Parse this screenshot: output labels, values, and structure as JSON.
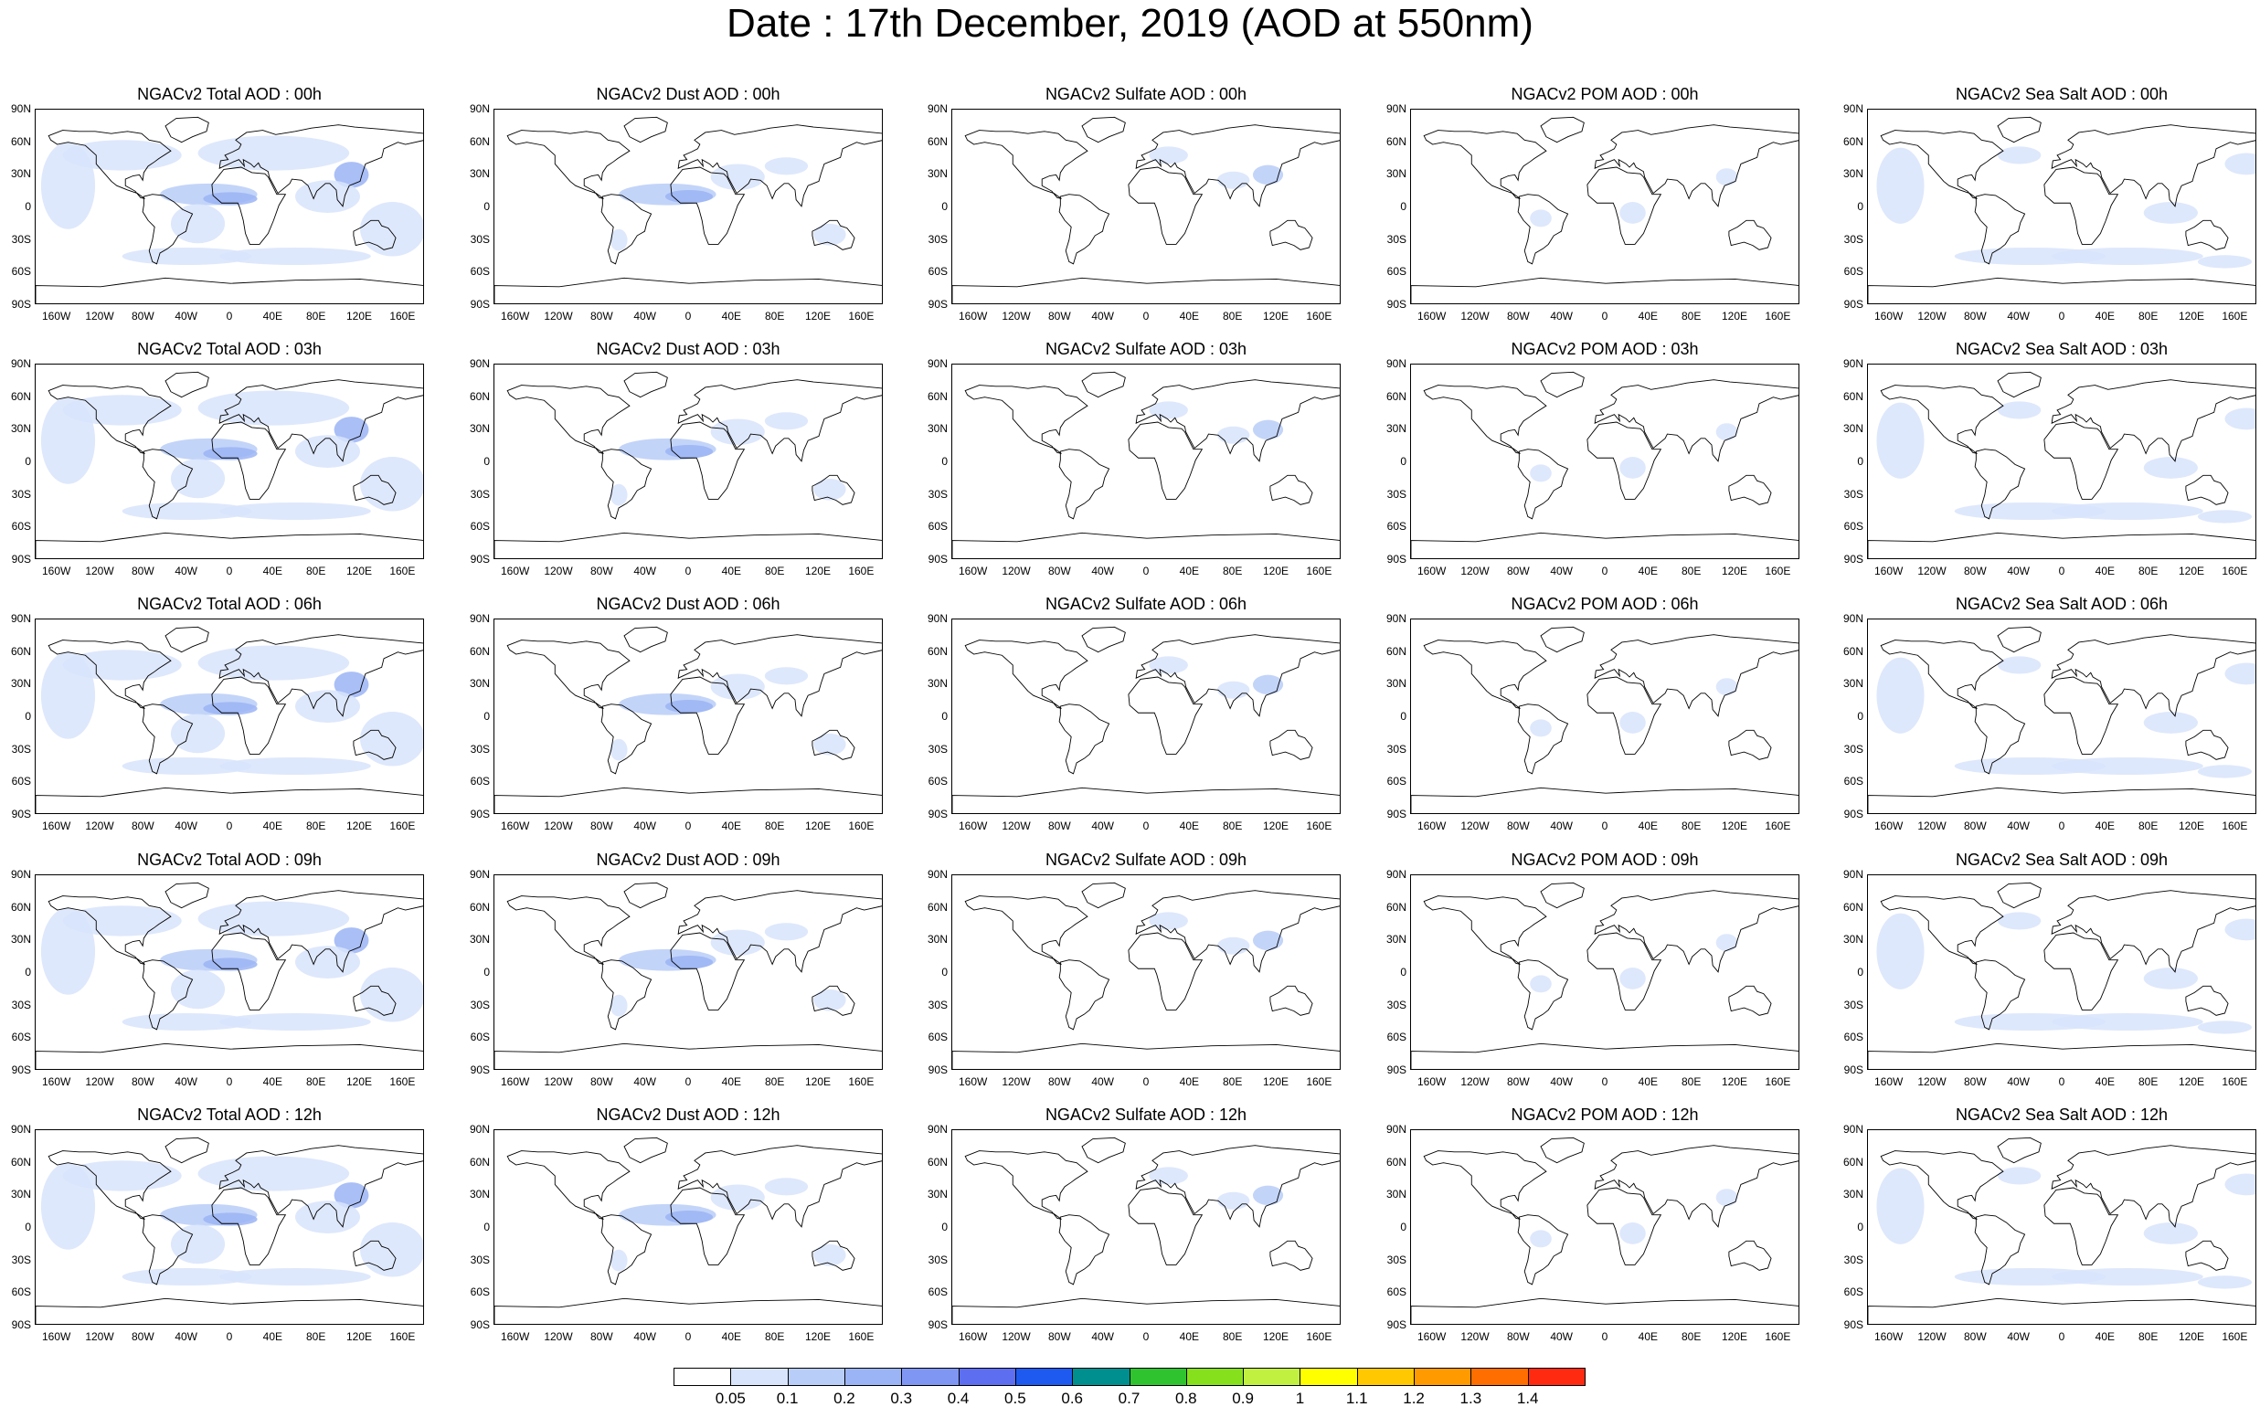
{
  "title": "Date : 17th December, 2019 (AOD at 550nm)",
  "lat_ticks": [
    "90N",
    "60N",
    "30N",
    "0",
    "30S",
    "60S",
    "90S"
  ],
  "lon_ticks": [
    "160W",
    "120W",
    "80W",
    "40W",
    "0",
    "40E",
    "80E",
    "120E",
    "160E"
  ],
  "columns": [
    {
      "variable": "total",
      "titles": [
        "NGACv2 Total AOD : 00h",
        "NGACv2 Total AOD : 03h",
        "NGACv2 Total AOD : 06h",
        "NGACv2 Total AOD : 09h",
        "NGACv2 Total AOD :  12h"
      ]
    },
    {
      "variable": "dust",
      "titles": [
        "NGACv2 Dust AOD : 00h",
        "NGACv2 Dust AOD : 03h",
        "NGACv2 Dust AOD : 06h",
        "NGACv2 Dust AOD : 09h",
        "NGACv2 Dust AOD : 12h"
      ]
    },
    {
      "variable": "sulfate",
      "titles": [
        "NGACv2 Sulfate AOD : 00h",
        "NGACv2 Sulfate AOD : 03h",
        "NGACv2 Sulfate AOD : 06h",
        "NGACv2 Sulfate AOD : 09h",
        "NGACv2 Sulfate AOD : 12h"
      ]
    },
    {
      "variable": "pom",
      "titles": [
        "NGACv2 POM AOD : 00h",
        "NGACv2 POM AOD : 03h",
        "NGACv2 POM AOD : 06h",
        "NGACv2 POM AOD : 09h",
        "NGACv2 POM  AOD : 12h"
      ]
    },
    {
      "variable": "seasalt",
      "titles": [
        "NGACv2 Sea Salt AOD : 00h",
        "NGACv2 Sea Salt AOD : 03h",
        "NGACv2 Sea Salt AOD : 06h",
        "NGACv2 Sea Salt  AOD : 09h",
        "NGACv2 Sea Salt AOD : 12h"
      ]
    }
  ],
  "colorbar": {
    "colors": [
      "#ffffff",
      "#d8e4fb",
      "#b8cdf8",
      "#9bb4f5",
      "#7f96f2",
      "#5e6ef0",
      "#1e5af0",
      "#008f8f",
      "#2fc42f",
      "#86e01c",
      "#c2f040",
      "#ffff00",
      "#ffc800",
      "#ff9a00",
      "#ff6e00",
      "#ff2a10"
    ],
    "labels": [
      "0.05",
      "0.1",
      "0.2",
      "0.3",
      "0.4",
      "0.5",
      "0.6",
      "0.7",
      "0.8",
      "0.9",
      "1",
      "1.1",
      "1.2",
      "1.3",
      "1.4"
    ]
  }
}
